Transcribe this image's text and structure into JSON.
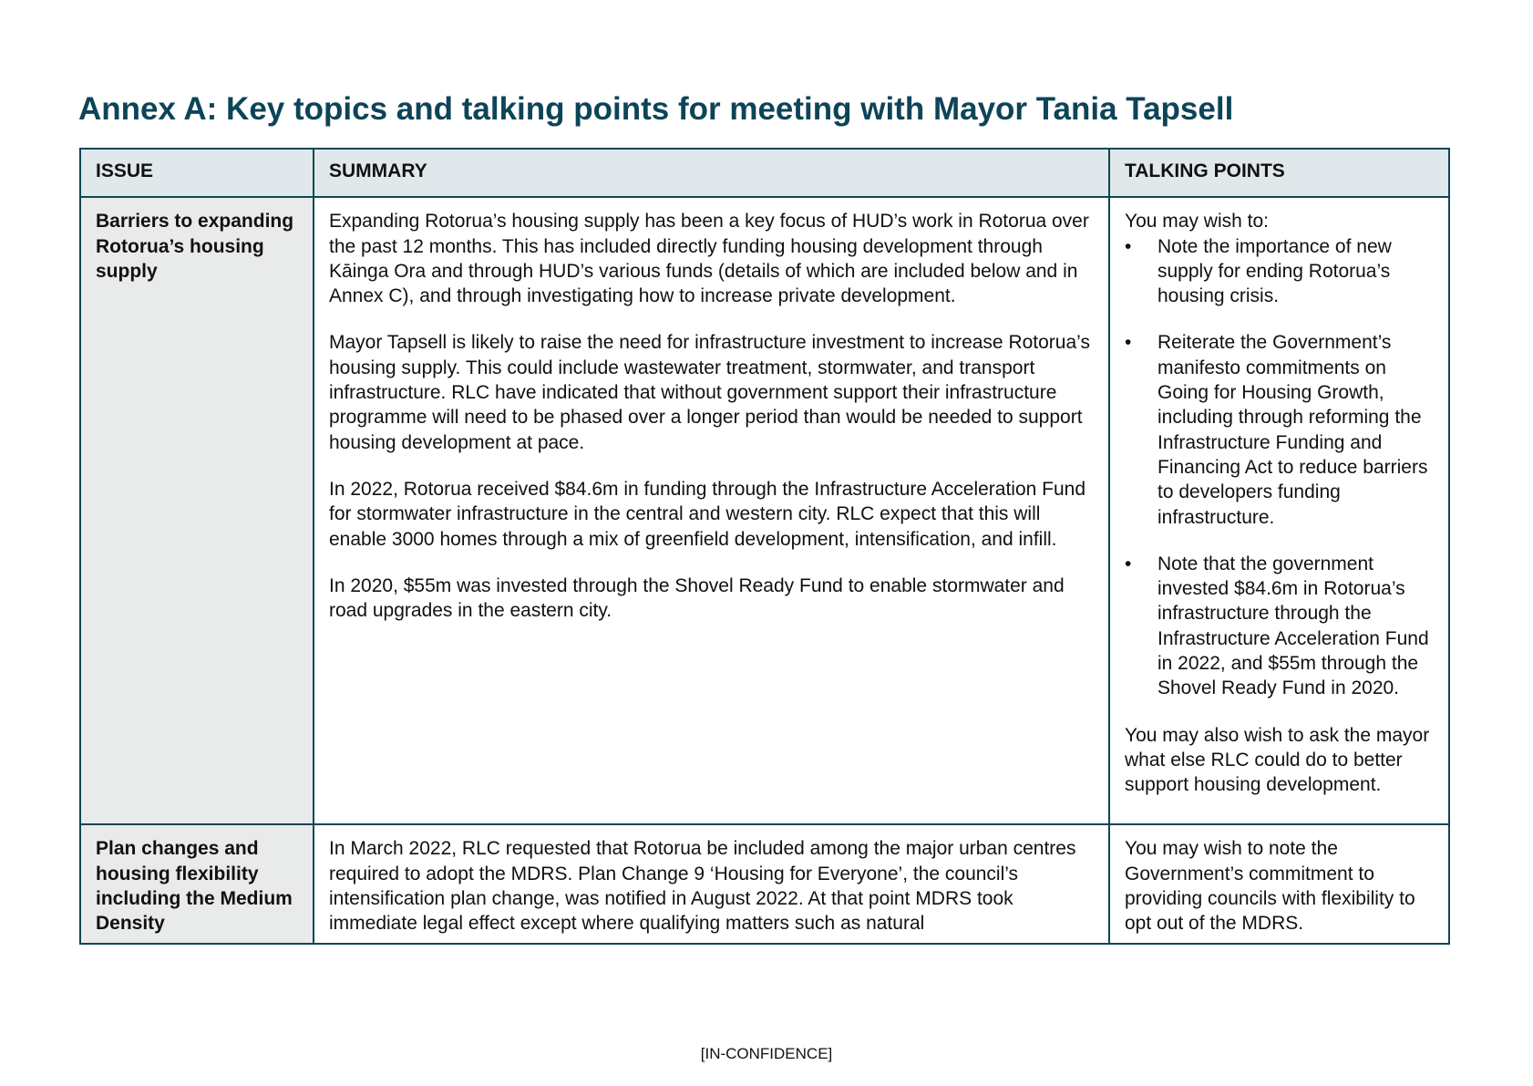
{
  "title": "Annex A: Key topics and talking points for meeting with Mayor Tania Tapsell",
  "table": {
    "headers": [
      "ISSUE",
      "SUMMARY",
      "TALKING POINTS"
    ],
    "rows": [
      {
        "issue": "Barriers to expanding Rotorua’s housing supply",
        "summary": [
          "Expanding Rotorua’s housing supply has been a key focus of HUD’s work in Rotorua over the past 12 months. This has included directly funding housing development through Kāinga Ora and through HUD’s various funds (details of which are included below and in Annex C), and through investigating how to increase private development.",
          "Mayor Tapsell is likely to raise the need for infrastructure investment to increase Rotorua’s housing supply. This could include wastewater treatment, stormwater, and transport infrastructure. RLC have indicated that without government support their infrastructure programme will need to be phased over a longer period than would be needed to support housing development at pace.",
          "In 2022, Rotorua received $84.6m in funding through the Infrastructure Acceleration Fund for stormwater infrastructure in the central and western city. RLC expect that this will enable 3000 homes through a mix of greenfield development, intensification, and infill.",
          "In 2020, $55m was invested through the Shovel Ready Fund to enable stormwater and road upgrades in the eastern city."
        ],
        "talking_intro": "You may wish to:",
        "talking_bullets": [
          "Note the importance of new supply for ending Rotorua’s housing crisis.",
          "Reiterate the Government’s manifesto commitments on Going for Housing Growth, including through reforming the Infrastructure Funding and Financing Act to reduce barriers to developers funding infrastructure.",
          "Note that the government invested $84.6m in Rotorua’s infrastructure through the Infrastructure Acceleration Fund in 2022, and $55m through the Shovel Ready Fund in 2020."
        ],
        "talking_outro": "You may also wish to ask the mayor what else RLC could do to better support housing development."
      },
      {
        "issue": "Plan changes and housing flexibility including the Medium Density",
        "summary": [
          "In March 2022, RLC requested that Rotorua be included among the major urban centres required to adopt the MDRS. Plan Change 9 ‘Housing for Everyone’, the council’s intensification plan change, was notified in August 2022. At that point MDRS took immediate legal effect except where qualifying matters such as natural"
        ],
        "talking": "You may wish to note the Government’s commitment to providing councils with flexibility to opt out of the MDRS."
      }
    ]
  },
  "footer": "[IN-CONFIDENCE]",
  "colors": {
    "heading": "#0d4458",
    "border": "#0f4656",
    "header_bg": "#e1e8eb",
    "issue_bg": "#e9eaea"
  }
}
